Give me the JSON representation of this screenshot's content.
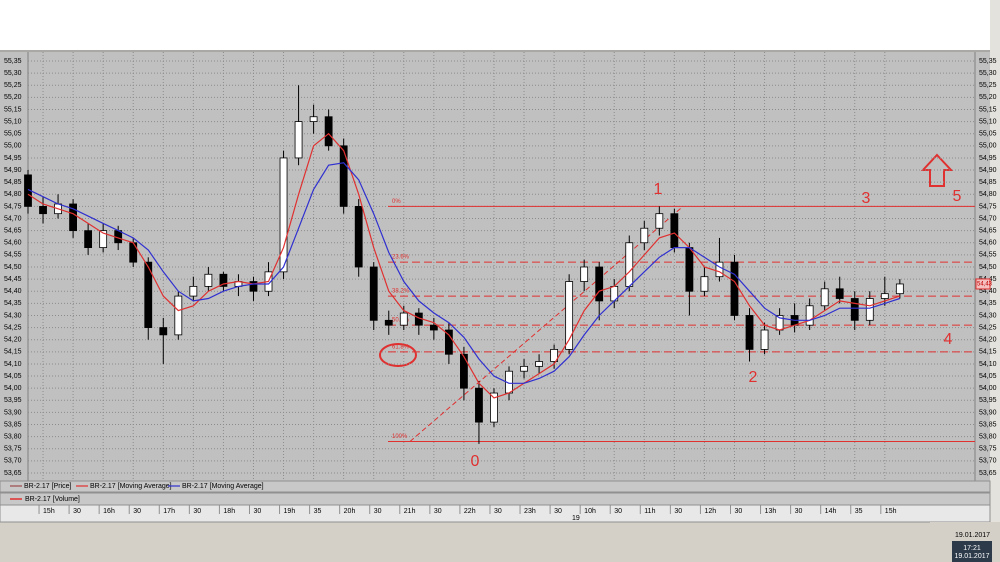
{
  "chart_data": {
    "type": "candlestick",
    "xlim": [
      0,
      63
    ],
    "xticks": [
      {
        "value": 1,
        "label": "15h"
      },
      {
        "value": 3,
        "label": "30"
      },
      {
        "value": 5,
        "label": "16h"
      },
      {
        "value": 7,
        "label": "30"
      },
      {
        "value": 9,
        "label": "17h"
      },
      {
        "value": 11,
        "label": "30"
      },
      {
        "value": 13,
        "label": "18h"
      },
      {
        "value": 15,
        "label": "30"
      },
      {
        "value": 17,
        "label": "19h"
      },
      {
        "value": 19,
        "label": "35"
      },
      {
        "value": 21,
        "label": "20h"
      },
      {
        "value": 23,
        "label": "30"
      },
      {
        "value": 25,
        "label": "21h"
      },
      {
        "value": 27,
        "label": "30"
      },
      {
        "value": 29,
        "label": "22h"
      },
      {
        "value": 31,
        "label": "30"
      },
      {
        "value": 33,
        "label": "23h"
      },
      {
        "value": 35,
        "label": "30"
      },
      {
        "value": 37,
        "label": "10h"
      },
      {
        "value": 39,
        "label": "30"
      },
      {
        "value": 41,
        "label": "11h"
      },
      {
        "value": 43,
        "label": "30"
      },
      {
        "value": 45,
        "label": "12h"
      },
      {
        "value": 47,
        "label": "30"
      },
      {
        "value": 49,
        "label": "13h"
      },
      {
        "value": 51,
        "label": "30"
      },
      {
        "value": 53,
        "label": "14h"
      },
      {
        "value": 55,
        "label": "35"
      },
      {
        "value": 57,
        "label": "15h"
      }
    ],
    "ylim": [
      53.65,
      55.35
    ],
    "yticks": [
      {
        "value": 55.35,
        "label": "55,35"
      },
      {
        "value": 55.3,
        "label": "55,30"
      },
      {
        "value": 55.25,
        "label": "55,25"
      },
      {
        "value": 55.2,
        "label": "55,20"
      },
      {
        "value": 55.15,
        "label": "55,15"
      },
      {
        "value": 55.1,
        "label": "55,10"
      },
      {
        "value": 55.05,
        "label": "55,05"
      },
      {
        "value": 55,
        "label": "55,00"
      },
      {
        "value": 54.95,
        "label": "54,95"
      },
      {
        "value": 54.9,
        "label": "54,90"
      },
      {
        "value": 54.85,
        "label": "54,85"
      },
      {
        "value": 54.8,
        "label": "54,80"
      },
      {
        "value": 54.75,
        "label": "54,75"
      },
      {
        "value": 54.7,
        "label": "54,70"
      },
      {
        "value": 54.65,
        "label": "54,65"
      },
      {
        "value": 54.6,
        "label": "54,60"
      },
      {
        "value": 54.55,
        "label": "54,55"
      },
      {
        "value": 54.5,
        "label": "54,50"
      },
      {
        "value": 54.45,
        "label": "54,45"
      },
      {
        "value": 54.4,
        "label": "54,40"
      },
      {
        "value": 54.35,
        "label": "54,35"
      },
      {
        "value": 54.3,
        "label": "54,30"
      },
      {
        "value": 54.25,
        "label": "54,25"
      },
      {
        "value": 54.2,
        "label": "54,20"
      },
      {
        "value": 54.15,
        "label": "54,15"
      },
      {
        "value": 54.1,
        "label": "54,10"
      },
      {
        "value": 54.05,
        "label": "54,05"
      },
      {
        "value": 54,
        "label": "54,00"
      },
      {
        "value": 53.95,
        "label": "53,95"
      },
      {
        "value": 53.9,
        "label": "53,90"
      },
      {
        "value": 53.85,
        "label": "53,85"
      },
      {
        "value": 53.8,
        "label": "53,80"
      },
      {
        "value": 53.75,
        "label": "53,75"
      },
      {
        "value": 53.7,
        "label": "53,70"
      },
      {
        "value": 53.65,
        "label": "53,65"
      }
    ],
    "grid": true,
    "series": [
      {
        "name": "BR-2.17 [Price]",
        "color": "#9b4a4a",
        "open": [
          54.88,
          54.75,
          54.72,
          54.76,
          54.65,
          54.58,
          54.65,
          54.6,
          54.52,
          54.25,
          54.22,
          54.38,
          54.42,
          54.47,
          54.42,
          54.44,
          54.4,
          54.48,
          54.95,
          55.1,
          55.12,
          55.0,
          54.75,
          54.5,
          54.28,
          54.26,
          54.31,
          54.26,
          54.24,
          54.14,
          54.0,
          53.86,
          53.98,
          54.07,
          54.09,
          54.11,
          54.16,
          54.44,
          54.5,
          54.36,
          54.42,
          54.6,
          54.66,
          54.72,
          54.58,
          54.4,
          54.46,
          54.52,
          54.3,
          54.16,
          54.24,
          54.3,
          54.26,
          54.34,
          54.41,
          54.37,
          54.28,
          54.37,
          54.39
        ],
        "high": [
          54.9,
          54.79,
          54.8,
          54.78,
          54.68,
          54.68,
          54.67,
          54.62,
          54.54,
          54.29,
          54.4,
          54.46,
          54.5,
          54.48,
          54.47,
          54.46,
          54.52,
          54.98,
          55.25,
          55.17,
          55.15,
          55.03,
          54.78,
          54.52,
          54.32,
          54.34,
          54.33,
          54.29,
          54.27,
          54.17,
          54.03,
          54.0,
          54.09,
          54.12,
          54.14,
          54.18,
          54.47,
          54.53,
          54.52,
          54.45,
          54.63,
          54.69,
          54.75,
          54.74,
          54.6,
          54.5,
          54.62,
          54.55,
          54.33,
          54.27,
          54.33,
          54.35,
          54.37,
          54.44,
          54.46,
          54.4,
          54.4,
          54.46,
          54.45
        ],
        "low": [
          54.72,
          54.68,
          54.7,
          54.62,
          54.55,
          54.56,
          54.57,
          54.5,
          54.2,
          54.1,
          54.2,
          54.36,
          54.4,
          54.4,
          54.38,
          54.36,
          54.38,
          54.45,
          54.92,
          55.05,
          54.98,
          54.72,
          54.46,
          54.24,
          54.22,
          54.24,
          54.22,
          54.2,
          54.1,
          53.95,
          53.77,
          53.84,
          53.95,
          54.04,
          54.06,
          54.08,
          54.14,
          54.4,
          54.28,
          54.33,
          54.4,
          54.57,
          54.63,
          54.56,
          54.3,
          54.38,
          54.44,
          54.28,
          54.11,
          54.14,
          54.22,
          54.23,
          54.24,
          54.32,
          54.35,
          54.24,
          54.26,
          54.34,
          54.37
        ],
        "close": [
          54.75,
          54.72,
          54.76,
          54.65,
          54.58,
          54.65,
          54.6,
          54.52,
          54.25,
          54.22,
          54.38,
          54.42,
          54.47,
          54.42,
          54.44,
          54.4,
          54.48,
          54.95,
          55.1,
          55.12,
          55.0,
          54.75,
          54.5,
          54.28,
          54.26,
          54.31,
          54.26,
          54.24,
          54.14,
          54.0,
          53.86,
          53.98,
          54.07,
          54.09,
          54.11,
          54.16,
          54.44,
          54.5,
          54.36,
          54.42,
          54.6,
          54.66,
          54.72,
          54.58,
          54.4,
          54.46,
          54.52,
          54.3,
          54.16,
          54.24,
          54.3,
          54.26,
          54.34,
          54.41,
          54.37,
          54.28,
          54.37,
          54.39,
          54.43
        ]
      },
      {
        "name": "BR-2.17 [Moving Average]",
        "color": "#e03030",
        "values": [
          54.8,
          54.76,
          54.74,
          54.72,
          54.68,
          54.64,
          54.62,
          54.6,
          54.5,
          54.38,
          54.32,
          54.34,
          54.4,
          54.43,
          54.44,
          54.43,
          54.44,
          54.58,
          54.8,
          55.0,
          55.05,
          54.98,
          54.8,
          54.58,
          54.4,
          54.32,
          54.29,
          54.27,
          54.22,
          54.13,
          54.02,
          53.96,
          53.98,
          54.02,
          54.06,
          54.1,
          54.2,
          54.32,
          54.4,
          54.42,
          54.48,
          54.55,
          54.62,
          54.64,
          54.58,
          54.5,
          54.48,
          54.44,
          54.34,
          54.26,
          54.24,
          54.26,
          54.28,
          54.32,
          54.36,
          54.35,
          54.34,
          54.36,
          54.38
        ]
      },
      {
        "name": "BR-2.17 [Moving Average]",
        "color": "#3030d0",
        "values": [
          54.82,
          54.79,
          54.76,
          54.74,
          54.71,
          54.68,
          54.65,
          54.62,
          54.57,
          54.48,
          54.4,
          54.36,
          54.37,
          54.4,
          54.42,
          54.43,
          54.43,
          54.5,
          54.66,
          54.82,
          54.92,
          54.93,
          54.86,
          54.72,
          54.56,
          54.44,
          54.36,
          54.31,
          54.27,
          54.21,
          54.12,
          54.05,
          54.02,
          54.02,
          54.04,
          54.07,
          54.13,
          54.22,
          54.3,
          54.36,
          54.42,
          54.48,
          54.54,
          54.58,
          54.58,
          54.54,
          54.5,
          54.47,
          54.4,
          54.33,
          54.29,
          54.28,
          54.28,
          54.3,
          54.33,
          54.33,
          54.33,
          54.35,
          54.37
        ]
      }
    ],
    "fib_levels": [
      {
        "value": 54.75,
        "label": "0%"
      },
      {
        "value": 54.52,
        "label": "23.6%"
      },
      {
        "value": 54.38,
        "label": "38.2%"
      },
      {
        "value": 54.26,
        "label": "50.0%"
      },
      {
        "value": 54.15,
        "label": "61.8%"
      },
      {
        "value": 53.78,
        "label": "100%"
      }
    ],
    "fib_color": "#e03030",
    "annotations": [
      "0",
      "1",
      "2",
      "3",
      "4",
      "5"
    ],
    "last_price": {
      "value": 54.43,
      "label": "54,43"
    },
    "volume_label": "BR-2.17 [Volume]",
    "day_label": "19",
    "status_date": "19.01.2017",
    "clock_time": "17:21",
    "clock_date": "19.01.2017"
  }
}
